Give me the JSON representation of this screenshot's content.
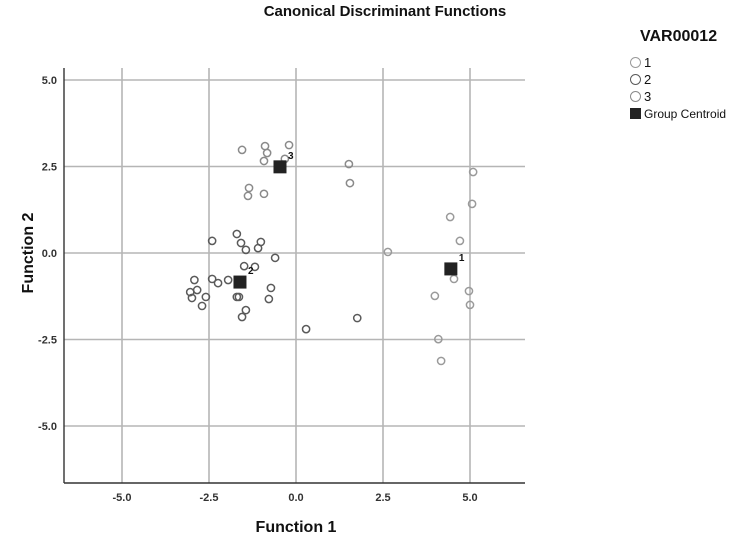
{
  "chart_data": {
    "type": "scatter",
    "title": "Canonical Discriminant Functions",
    "xlabel": "Function 1",
    "ylabel": "Function 2",
    "xlim": [
      -6.6,
      6.6
    ],
    "ylim": [
      -6.7,
      6.7
    ],
    "xticks": [
      -5.0,
      -2.5,
      0.0,
      2.5,
      5.0
    ],
    "yticks": [
      5.0,
      2.5,
      0.0,
      -2.5,
      -5.0
    ],
    "xtick_labels": [
      "-5.0",
      "-2.5",
      "0.0",
      "2.5",
      "5.0"
    ],
    "ytick_labels": [
      "5.0",
      "2.5",
      "0.0",
      "-2.5",
      "-5.0"
    ],
    "grid": true,
    "legend_title": "VAR00012",
    "legend_position": "right",
    "series": [
      {
        "name": "1",
        "marker": "open-circle",
        "color": "#9a9a9a",
        "points": [
          [
            5.09,
            2.34
          ],
          [
            5.06,
            1.42
          ],
          [
            4.43,
            1.04
          ],
          [
            4.71,
            0.35
          ],
          [
            2.64,
            0.03
          ],
          [
            4.54,
            -0.75
          ],
          [
            4.97,
            -1.1
          ],
          [
            3.99,
            -1.24
          ],
          [
            5.0,
            -1.5
          ],
          [
            4.09,
            -2.49
          ],
          [
            4.17,
            -3.12
          ]
        ]
      },
      {
        "name": "2",
        "marker": "open-circle",
        "color": "#5a5a5a",
        "points": [
          [
            -2.41,
            0.35
          ],
          [
            -1.7,
            0.55
          ],
          [
            -1.58,
            0.29
          ],
          [
            -1.44,
            0.09
          ],
          [
            -1.01,
            0.32
          ],
          [
            -1.09,
            0.14
          ],
          [
            -0.6,
            -0.14
          ],
          [
            -1.49,
            -0.38
          ],
          [
            -1.18,
            -0.4
          ],
          [
            -2.41,
            -0.75
          ],
          [
            -2.24,
            -0.87
          ],
          [
            -1.95,
            -0.78
          ],
          [
            -2.92,
            -0.78
          ],
          [
            -3.04,
            -1.13
          ],
          [
            -2.84,
            -1.07
          ],
          [
            -2.99,
            -1.3
          ],
          [
            -2.59,
            -1.27
          ],
          [
            -2.7,
            -1.53
          ],
          [
            -1.7,
            -1.27
          ],
          [
            -1.64,
            -1.27
          ],
          [
            -0.72,
            -1.01
          ],
          [
            -0.78,
            -1.33
          ],
          [
            -1.44,
            -1.65
          ],
          [
            -1.55,
            -1.85
          ],
          [
            0.29,
            -2.2
          ],
          [
            1.76,
            -1.88
          ]
        ]
      },
      {
        "name": "3",
        "marker": "open-circle",
        "color": "#8a8a8a",
        "points": [
          [
            -1.55,
            2.98
          ],
          [
            -0.89,
            3.09
          ],
          [
            -0.83,
            2.89
          ],
          [
            -0.92,
            2.66
          ],
          [
            -0.2,
            3.12
          ],
          [
            -0.32,
            2.72
          ],
          [
            -1.35,
            1.88
          ],
          [
            -1.38,
            1.65
          ],
          [
            -0.92,
            1.71
          ],
          [
            1.52,
            2.57
          ],
          [
            1.55,
            2.02
          ]
        ]
      }
    ],
    "centroids": [
      {
        "group": "1",
        "x": 4.45,
        "y": -0.46,
        "label": "1"
      },
      {
        "group": "2",
        "x": -1.61,
        "y": -0.84,
        "label": "2"
      },
      {
        "group": "3",
        "x": -0.46,
        "y": 2.49,
        "label": "3"
      }
    ],
    "centroid_legend_label": "Group Centroid",
    "centroid_color": "#222222"
  },
  "legend": {
    "title": "VAR00012",
    "items": [
      {
        "label": "1",
        "color": "#9a9a9a"
      },
      {
        "label": "2",
        "color": "#5a5a5a"
      },
      {
        "label": "3",
        "color": "#8a8a8a"
      }
    ],
    "centroid_label": "Group Centroid"
  }
}
